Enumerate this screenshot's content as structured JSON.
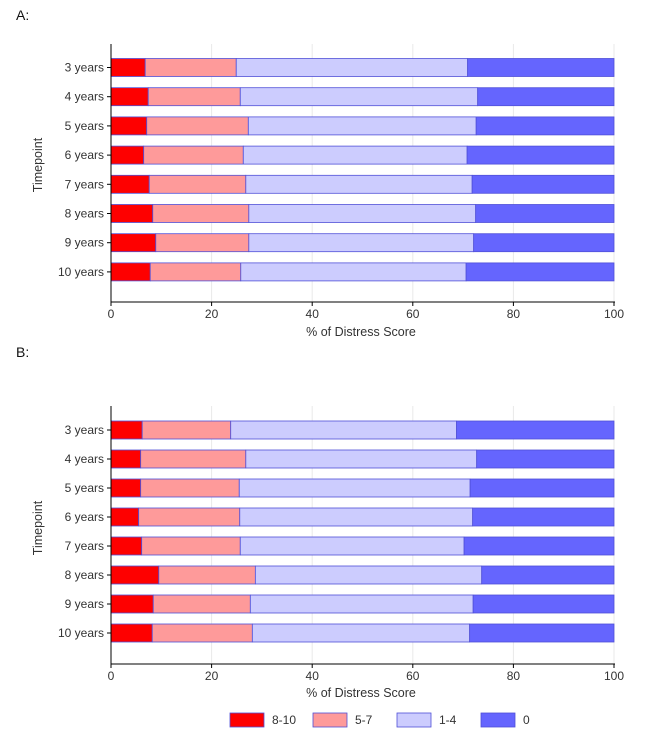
{
  "colors": {
    "score_8_10": "#fe0000",
    "score_5_7": "#fe9a9a",
    "score_1_4": "#ccccfe",
    "score_0": "#6565fe",
    "bar_edge": "#5050d8",
    "axis": "#000000",
    "grid": "#e9e9e9"
  },
  "chart_data": [
    {
      "panel_label": "A:",
      "type": "bar",
      "orientation": "horizontal",
      "stacked": true,
      "xlabel": "% of Distress Score",
      "ylabel": "Timepoint",
      "xlim": [
        0,
        100
      ],
      "xticks": [
        0,
        20,
        40,
        60,
        80,
        100
      ],
      "categories": [
        "3 years",
        "4 years",
        "5 years",
        "6 years",
        "7 years",
        "8 years",
        "9 years",
        "10 years"
      ],
      "series": [
        {
          "name": "8-10",
          "values": [
            6.8,
            7.4,
            7.1,
            6.5,
            7.6,
            8.3,
            8.9,
            7.8
          ]
        },
        {
          "name": "5-7",
          "values": [
            18.1,
            18.3,
            20.2,
            19.8,
            19.2,
            19.1,
            18.5,
            18.0
          ]
        },
        {
          "name": "1-4",
          "values": [
            46.0,
            47.2,
            45.3,
            44.5,
            45.0,
            45.1,
            44.7,
            44.8
          ]
        },
        {
          "name": "0",
          "values": [
            29.1,
            27.1,
            27.4,
            29.2,
            28.2,
            27.5,
            27.9,
            29.4
          ]
        }
      ]
    },
    {
      "panel_label": "B:",
      "type": "bar",
      "orientation": "horizontal",
      "stacked": true,
      "xlabel": "% of Distress Score",
      "ylabel": "Timepoint",
      "xlim": [
        0,
        100
      ],
      "xticks": [
        0,
        20,
        40,
        60,
        80,
        100
      ],
      "categories": [
        "3 years",
        "4 years",
        "5 years",
        "6 years",
        "7 years",
        "8 years",
        "9 years",
        "10 years"
      ],
      "series": [
        {
          "name": "8-10",
          "values": [
            6.2,
            5.9,
            5.9,
            5.5,
            6.1,
            9.5,
            8.4,
            8.2
          ]
        },
        {
          "name": "5-7",
          "values": [
            17.6,
            20.9,
            19.6,
            20.1,
            19.6,
            19.2,
            19.3,
            19.9
          ]
        },
        {
          "name": "1-4",
          "values": [
            44.9,
            45.9,
            45.9,
            46.3,
            44.5,
            45.0,
            44.3,
            43.2
          ]
        },
        {
          "name": "0",
          "values": [
            31.3,
            27.3,
            28.6,
            28.1,
            29.8,
            26.3,
            28.0,
            28.7
          ]
        }
      ]
    }
  ],
  "legend": {
    "position": "bottom",
    "entries": [
      {
        "label": "8-10",
        "color_key": "score_8_10"
      },
      {
        "label": "5-7",
        "color_key": "score_5_7"
      },
      {
        "label": "1-4",
        "color_key": "score_1_4"
      },
      {
        "label": "0",
        "color_key": "score_0"
      }
    ]
  }
}
